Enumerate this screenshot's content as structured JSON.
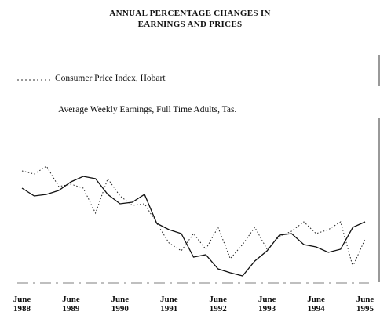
{
  "chart_data": {
    "type": "line",
    "title": "ANNUAL PERCENTAGE CHANGES IN EARNINGS AND PRICES",
    "categories": [
      "June 1988",
      null,
      null,
      null,
      "June 1989",
      null,
      null,
      null,
      "June 1990",
      null,
      null,
      null,
      "June 1991",
      null,
      null,
      null,
      "June 1992",
      null,
      null,
      null,
      "June 1993",
      null,
      null,
      null,
      "June 1994",
      null,
      null,
      null,
      "June 1995"
    ],
    "series": [
      {
        "name": "Consumer Price Index, Hobart",
        "color": "#222",
        "style": "dotted",
        "values": [
          7.1,
          6.9,
          7.4,
          6.1,
          6.25,
          6,
          4.4,
          6.6,
          5.5,
          4.9,
          5,
          3.75,
          2.5,
          2,
          3.1,
          2.1,
          3.5,
          1.5,
          2.4,
          3.5,
          2.1,
          2.9,
          3.25,
          3.85,
          3.1,
          3.35,
          3.85,
          1,
          2.75
        ]
      },
      {
        "name": "Average Weekly Earnings, Full Time Adults, Tas.",
        "color": "#111",
        "style": "solid",
        "values": [
          6,
          5.5,
          5.6,
          5.85,
          6.4,
          6.75,
          6.6,
          5.6,
          5,
          5.1,
          5.6,
          3.75,
          3.35,
          3.1,
          1.6,
          1.75,
          0.85,
          0.6,
          0.4,
          1.35,
          2,
          3,
          3.1,
          2.4,
          2.25,
          1.9,
          2.1,
          3.5,
          3.85
        ]
      }
    ],
    "ylim": [
      0,
      10
    ]
  }
}
